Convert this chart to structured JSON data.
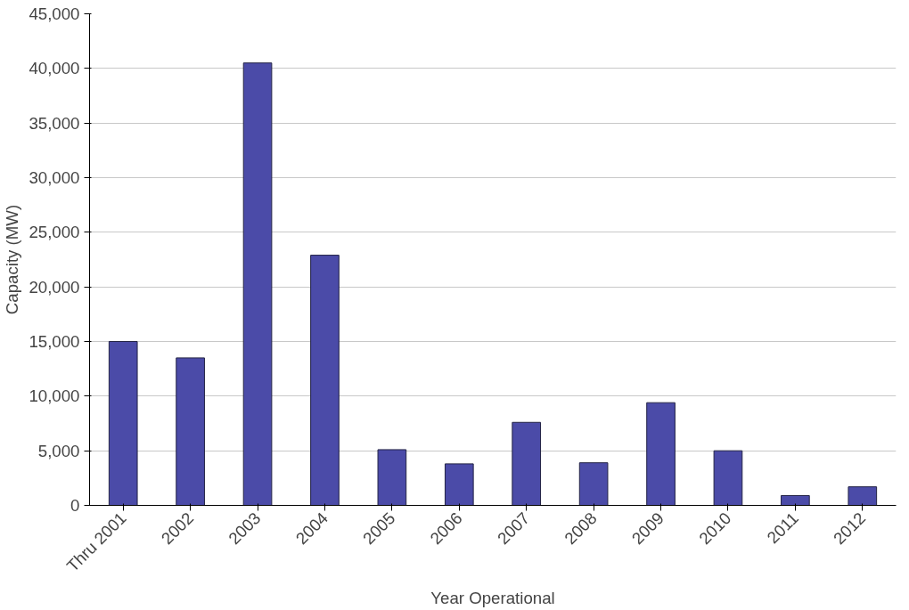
{
  "chart_data": {
    "type": "bar",
    "xlabel": "Year Operational",
    "ylabel": "Capacity (MW)",
    "categories": [
      "Thru 2001",
      "2002",
      "2003",
      "2004",
      "2005",
      "2006",
      "2007",
      "2008",
      "2009",
      "2010",
      "2011",
      "2012"
    ],
    "values": [
      15000,
      13500,
      40500,
      22900,
      5100,
      3800,
      7600,
      3900,
      9400,
      5000,
      900,
      1700
    ],
    "color": "#4b4ba8",
    "ylim": [
      0,
      45000
    ],
    "yticks": [
      {
        "value": 0,
        "label": "0"
      },
      {
        "value": 5000,
        "label": "5,000"
      },
      {
        "value": 10000,
        "label": "10,000"
      },
      {
        "value": 15000,
        "label": "15,000"
      },
      {
        "value": 20000,
        "label": "20,000"
      },
      {
        "value": 25000,
        "label": "25,000"
      },
      {
        "value": 30000,
        "label": "30,000"
      },
      {
        "value": 35000,
        "label": "35,000"
      },
      {
        "value": 40000,
        "label": "40,000"
      },
      {
        "value": 45000,
        "label": "45,000"
      }
    ],
    "grid": "y"
  }
}
